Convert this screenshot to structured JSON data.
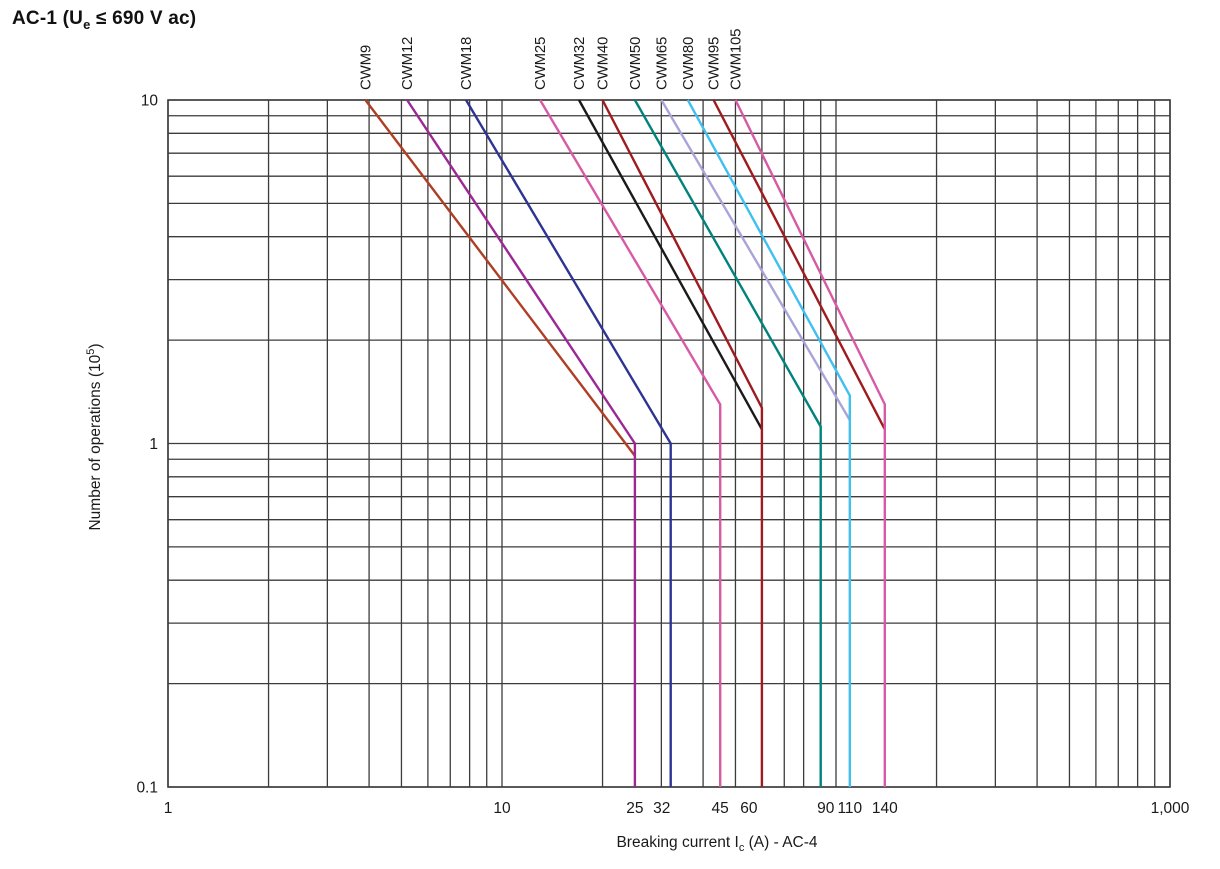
{
  "title": {
    "pre": "AC-1 (U",
    "sub": "e",
    "post": " ≤ 690 V ac)"
  },
  "chart_data": {
    "type": "line",
    "title": "AC-1 (Ue ≤ 690 V ac)",
    "xlabel": {
      "pre": "Breaking current I",
      "sub": "c",
      "post": " (A) - AC-4"
    },
    "ylabel": {
      "pre": "Number of operations (10",
      "sup": "5",
      "post": ")"
    },
    "x_scale": "log",
    "y_scale": "log",
    "xlim": [
      1,
      1000
    ],
    "ylim": [
      0.1,
      10
    ],
    "grid": true,
    "grid_color": "#3c3c3c",
    "background": "#ffffff",
    "legend_position": "labels-above-plot",
    "x_ticks": [
      {
        "value": 1,
        "label": "1"
      },
      {
        "value": 10,
        "label": "10"
      },
      {
        "value": 25,
        "label": "25"
      },
      {
        "value": 32,
        "label": "32"
      },
      {
        "value": 45,
        "label": "45"
      },
      {
        "value": 60,
        "label": "60"
      },
      {
        "value": 90,
        "label": "90"
      },
      {
        "value": 110,
        "label": "110"
      },
      {
        "value": 140,
        "label": "140"
      },
      {
        "value": 1000,
        "label": "1,000"
      }
    ],
    "y_ticks": [
      {
        "value": 10,
        "label": "10"
      },
      {
        "value": 1,
        "label": "1"
      },
      {
        "value": 0.1,
        "label": "0.1"
      }
    ],
    "series": [
      {
        "name": "CWM9",
        "color": "#AE3E24",
        "points": [
          [
            3.9,
            10
          ],
          [
            25,
            0.92
          ]
        ]
      },
      {
        "name": "CWM12",
        "color": "#9B2896",
        "points": [
          [
            5.2,
            10
          ],
          [
            25,
            1.0
          ],
          [
            25,
            0.1
          ]
        ]
      },
      {
        "name": "CWM18",
        "color": "#2E3491",
        "points": [
          [
            7.8,
            10
          ],
          [
            32,
            1.0
          ],
          [
            32,
            0.1
          ]
        ]
      },
      {
        "name": "CWM25",
        "color": "#D75AA5",
        "points": [
          [
            13,
            10
          ],
          [
            45,
            1.3
          ],
          [
            45,
            0.1
          ]
        ]
      },
      {
        "name": "CWM32",
        "color": "#1A1A1A",
        "points": [
          [
            17,
            10
          ],
          [
            60,
            1.1
          ]
        ]
      },
      {
        "name": "CWM40",
        "color": "#9E1B1F",
        "points": [
          [
            20,
            10
          ],
          [
            60,
            1.27
          ],
          [
            60,
            0.1
          ]
        ]
      },
      {
        "name": "CWM50",
        "color": "#00837B",
        "points": [
          [
            25,
            10
          ],
          [
            90,
            1.12
          ],
          [
            90,
            0.1
          ]
        ]
      },
      {
        "name": "CWM65",
        "color": "#A9A4D8",
        "points": [
          [
            30,
            10
          ],
          [
            110,
            1.17
          ]
        ]
      },
      {
        "name": "CWM80",
        "color": "#3FC0F0",
        "points": [
          [
            36,
            10
          ],
          [
            110,
            1.38
          ],
          [
            110,
            0.1
          ]
        ]
      },
      {
        "name": "CWM95",
        "color": "#9E1B1F",
        "points": [
          [
            43,
            10
          ],
          [
            140,
            1.1
          ]
        ]
      },
      {
        "name": "CWM105",
        "color": "#D75AA5",
        "points": [
          [
            50,
            10
          ],
          [
            140,
            1.3
          ],
          [
            140,
            0.1
          ]
        ]
      }
    ]
  }
}
